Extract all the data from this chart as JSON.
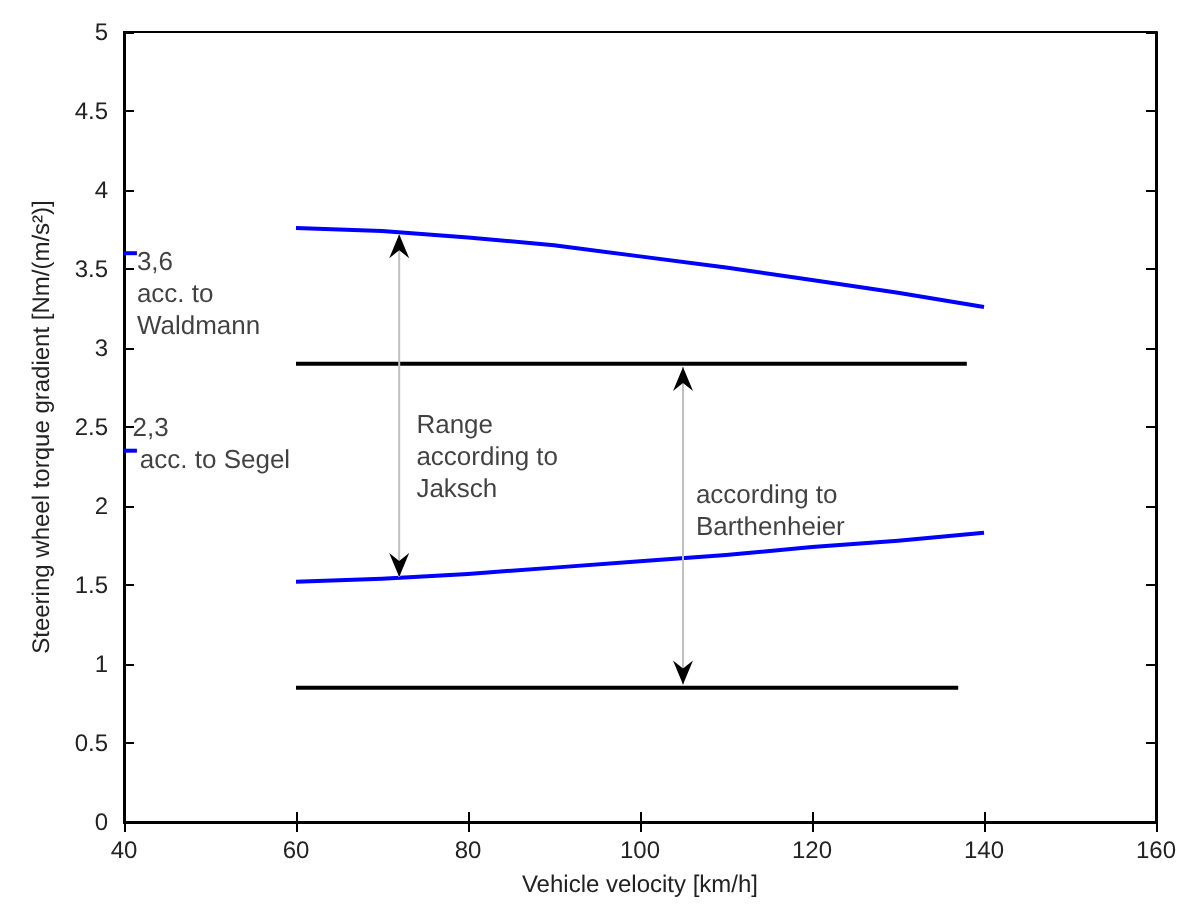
{
  "chart_data": {
    "type": "line",
    "xlabel": "Vehicle velocity [km/h]",
    "ylabel": "Steering wheel torque gradient [Nm/(m/s²)]",
    "xlim": [
      40,
      160
    ],
    "xticks": [
      40,
      60,
      80,
      100,
      120,
      140,
      160
    ],
    "ylim": [
      0,
      5
    ],
    "yticks": [
      0,
      0.5,
      1,
      1.5,
      2,
      2.5,
      3,
      3.5,
      4,
      4.5,
      5
    ],
    "grid": false,
    "marker": "none",
    "line_style": "solid",
    "series": [
      {
        "color": "#0000ff",
        "x": [
          60,
          70,
          80,
          90,
          100,
          110,
          120,
          130,
          140
        ],
        "values": [
          3.76,
          3.74,
          3.7,
          3.65,
          3.58,
          3.51,
          3.43,
          3.35,
          3.26
        ]
      },
      {
        "color": "#0000ff",
        "x": [
          60,
          70,
          80,
          90,
          100,
          110,
          120,
          130,
          140
        ],
        "values": [
          1.52,
          1.54,
          1.57,
          1.61,
          1.65,
          1.69,
          1.74,
          1.78,
          1.83
        ]
      },
      {
        "color": "#0000ff",
        "x": [
          40,
          41.5
        ],
        "values": [
          3.6,
          3.6
        ]
      },
      {
        "color": "#0000ff",
        "x": [
          40,
          41.5
        ],
        "values": [
          2.35,
          2.35
        ]
      },
      {
        "color": "#000000",
        "x": [
          60,
          138
        ],
        "values": [
          2.9,
          2.9
        ]
      },
      {
        "color": "#000000",
        "x": [
          60,
          137
        ],
        "values": [
          0.85,
          0.85
        ]
      }
    ],
    "annotations": [
      "3,6\nacc. to\nWaldmann",
      "2,3\n acc. to Segel",
      "Range\naccording to\nJaksch",
      "according to\nBarthenheier"
    ]
  }
}
